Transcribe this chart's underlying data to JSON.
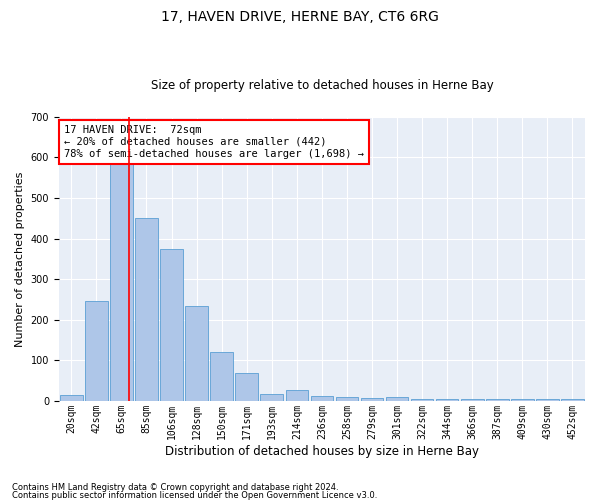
{
  "title": "17, HAVEN DRIVE, HERNE BAY, CT6 6RG",
  "subtitle": "Size of property relative to detached houses in Herne Bay",
  "xlabel": "Distribution of detached houses by size in Herne Bay",
  "ylabel": "Number of detached properties",
  "bar_color": "#aec6e8",
  "bar_edge_color": "#5a9fd4",
  "background_color": "#e8eef7",
  "grid_color": "#ffffff",
  "categories": [
    "20sqm",
    "42sqm",
    "65sqm",
    "85sqm",
    "106sqm",
    "128sqm",
    "150sqm",
    "171sqm",
    "193sqm",
    "214sqm",
    "236sqm",
    "258sqm",
    "279sqm",
    "301sqm",
    "322sqm",
    "344sqm",
    "366sqm",
    "387sqm",
    "409sqm",
    "430sqm",
    "452sqm"
  ],
  "values": [
    15,
    245,
    590,
    450,
    375,
    235,
    120,
    70,
    17,
    28,
    12,
    10,
    8,
    10,
    5,
    5,
    5,
    5,
    5,
    5,
    5
  ],
  "ylim": [
    0,
    700
  ],
  "yticks": [
    0,
    100,
    200,
    300,
    400,
    500,
    600,
    700
  ],
  "red_line_x": 2.32,
  "annotation_text": "17 HAVEN DRIVE:  72sqm\n← 20% of detached houses are smaller (442)\n78% of semi-detached houses are larger (1,698) →",
  "footnote1": "Contains HM Land Registry data © Crown copyright and database right 2024.",
  "footnote2": "Contains public sector information licensed under the Open Government Licence v3.0.",
  "title_fontsize": 10,
  "subtitle_fontsize": 8.5,
  "ylabel_fontsize": 8,
  "xlabel_fontsize": 8.5,
  "tick_fontsize": 7,
  "annot_fontsize": 7.5,
  "footnote_fontsize": 6
}
